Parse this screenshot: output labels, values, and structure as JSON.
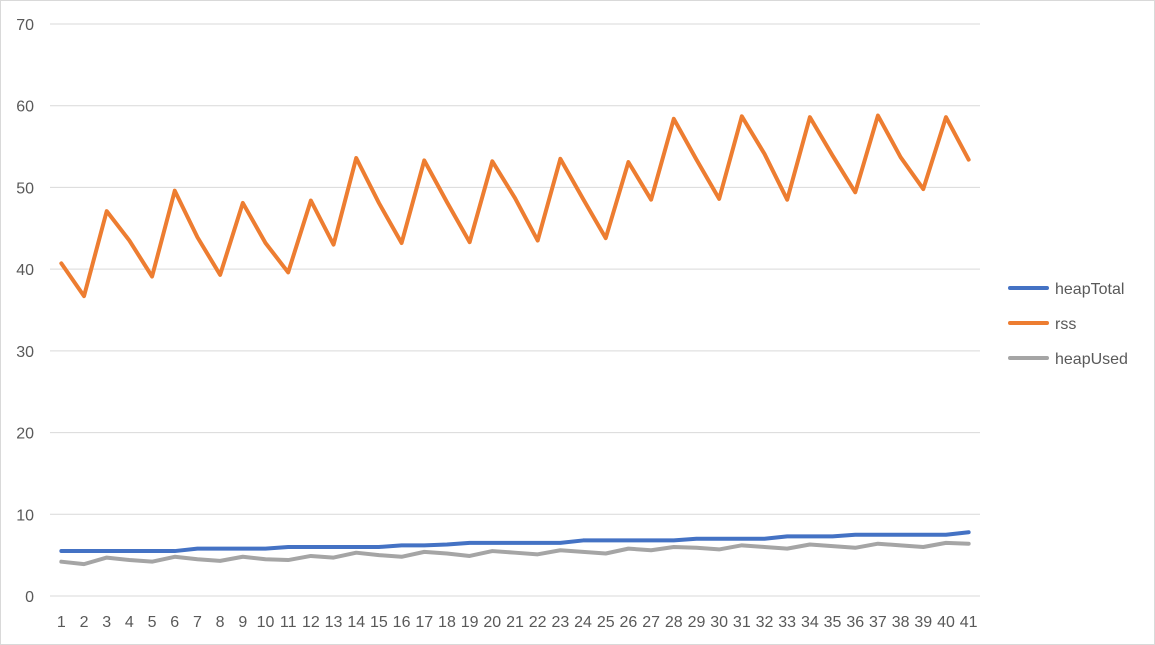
{
  "chart_data": {
    "type": "line",
    "title": "",
    "xlabel": "",
    "ylabel": "",
    "ylim": [
      0,
      70
    ],
    "yticks": [
      0,
      10,
      20,
      30,
      40,
      50,
      60,
      70
    ],
    "grid": true,
    "legend_position": "right",
    "x": [
      "1",
      "2",
      "3",
      "4",
      "5",
      "6",
      "7",
      "8",
      "9",
      "10",
      "11",
      "12",
      "13",
      "14",
      "15",
      "16",
      "17",
      "18",
      "19",
      "20",
      "21",
      "22",
      "23",
      "24",
      "25",
      "26",
      "27",
      "28",
      "29",
      "30",
      "31",
      "32",
      "33",
      "34",
      "35",
      "36",
      "37",
      "38",
      "39",
      "40",
      "41"
    ],
    "series": [
      {
        "name": "heapTotal",
        "color": "#4472c4",
        "values": [
          5.5,
          5.5,
          5.5,
          5.5,
          5.5,
          5.5,
          5.8,
          5.8,
          5.8,
          5.8,
          6.0,
          6.0,
          6.0,
          6.0,
          6.0,
          6.2,
          6.2,
          6.3,
          6.5,
          6.5,
          6.5,
          6.5,
          6.5,
          6.8,
          6.8,
          6.8,
          6.8,
          6.8,
          7.0,
          7.0,
          7.0,
          7.0,
          7.3,
          7.3,
          7.3,
          7.5,
          7.5,
          7.5,
          7.5,
          7.5,
          7.8
        ]
      },
      {
        "name": "rss",
        "color": "#ed7d31",
        "values": [
          40.7,
          36.7,
          47.1,
          43.5,
          39.1,
          49.6,
          43.9,
          39.3,
          48.1,
          43.2,
          39.6,
          48.4,
          43.0,
          53.6,
          48.1,
          43.2,
          53.3,
          48.2,
          43.3,
          53.2,
          48.7,
          43.5,
          53.5,
          48.6,
          43.8,
          53.1,
          48.5,
          58.4,
          53.4,
          48.6,
          58.7,
          54.1,
          48.5,
          58.6,
          53.9,
          49.4,
          58.8,
          53.7,
          49.8,
          58.6,
          53.4
        ]
      },
      {
        "name": "heapUsed",
        "color": "#a5a5a5",
        "values": [
          4.2,
          3.9,
          4.7,
          4.4,
          4.2,
          4.8,
          4.5,
          4.3,
          4.8,
          4.5,
          4.4,
          4.9,
          4.7,
          5.3,
          5.0,
          4.8,
          5.4,
          5.2,
          4.9,
          5.5,
          5.3,
          5.1,
          5.6,
          5.4,
          5.2,
          5.8,
          5.6,
          6.0,
          5.9,
          5.7,
          6.2,
          6.0,
          5.8,
          6.3,
          6.1,
          5.9,
          6.4,
          6.2,
          6.0,
          6.5,
          6.4
        ]
      }
    ]
  }
}
